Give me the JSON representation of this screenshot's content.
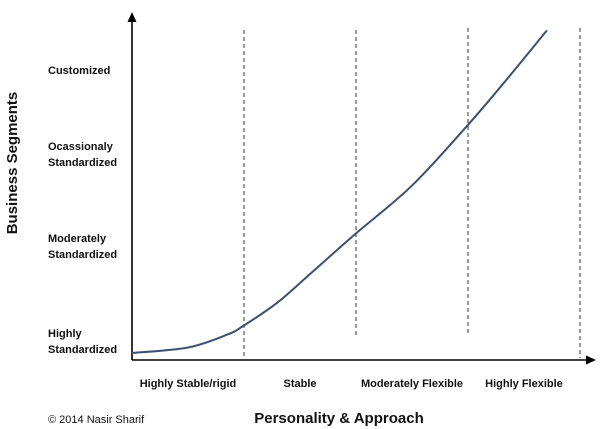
{
  "chart_data": {
    "type": "line",
    "title": "",
    "xlabel": "Personality & Approach",
    "ylabel": "Business Segments",
    "x_categories": [
      "Highly Stable/rigid",
      "Stable",
      "Moderately Flexible",
      "Highly Flexible"
    ],
    "y_categories": [
      [
        "Highly",
        "Standardized"
      ],
      [
        "Moderately",
        "Standardized"
      ],
      [
        "Ocassionaly",
        "Standardized"
      ],
      [
        "Customized"
      ]
    ],
    "xlim": [
      0,
      4
    ],
    "ylim": [
      0,
      3.3
    ],
    "series": [
      {
        "values": [
          [
            0.0,
            0.0
          ],
          [
            0.5,
            0.06
          ],
          [
            0.85,
            0.2
          ],
          [
            1.0,
            0.3
          ],
          [
            1.3,
            0.55
          ],
          [
            1.6,
            0.87
          ],
          [
            2.0,
            1.3
          ],
          [
            2.5,
            1.82
          ],
          [
            3.0,
            2.48
          ],
          [
            3.35,
            2.98
          ],
          [
            3.7,
            3.5
          ]
        ],
        "color": "#3b5170"
      }
    ],
    "grid": "vertical-dashed",
    "legend": "none"
  },
  "copyright": "© 2014 Nasir Sharif"
}
